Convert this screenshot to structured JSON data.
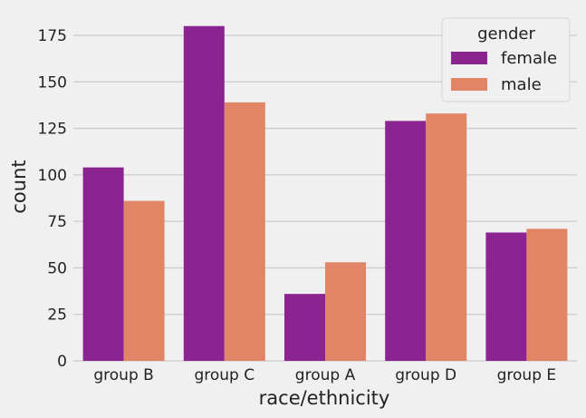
{
  "chart_data": {
    "type": "bar",
    "categories": [
      "group B",
      "group C",
      "group A",
      "group D",
      "group E"
    ],
    "series": [
      {
        "name": "female",
        "values": [
          104,
          180,
          36,
          129,
          69
        ],
        "color": "#8b2390"
      },
      {
        "name": "male",
        "values": [
          86,
          139,
          53,
          133,
          71
        ],
        "color": "#e08566"
      }
    ],
    "xlabel": "race/ethnicity",
    "ylabel": "count",
    "ylim": [
      0,
      185
    ],
    "yticks": [
      0,
      25,
      50,
      75,
      100,
      125,
      150,
      175
    ],
    "grid": true,
    "legend": {
      "title": "gender",
      "position": "top-right"
    },
    "colors": {
      "background": "#f0f0f0",
      "grid": "#cbcbcb"
    }
  }
}
